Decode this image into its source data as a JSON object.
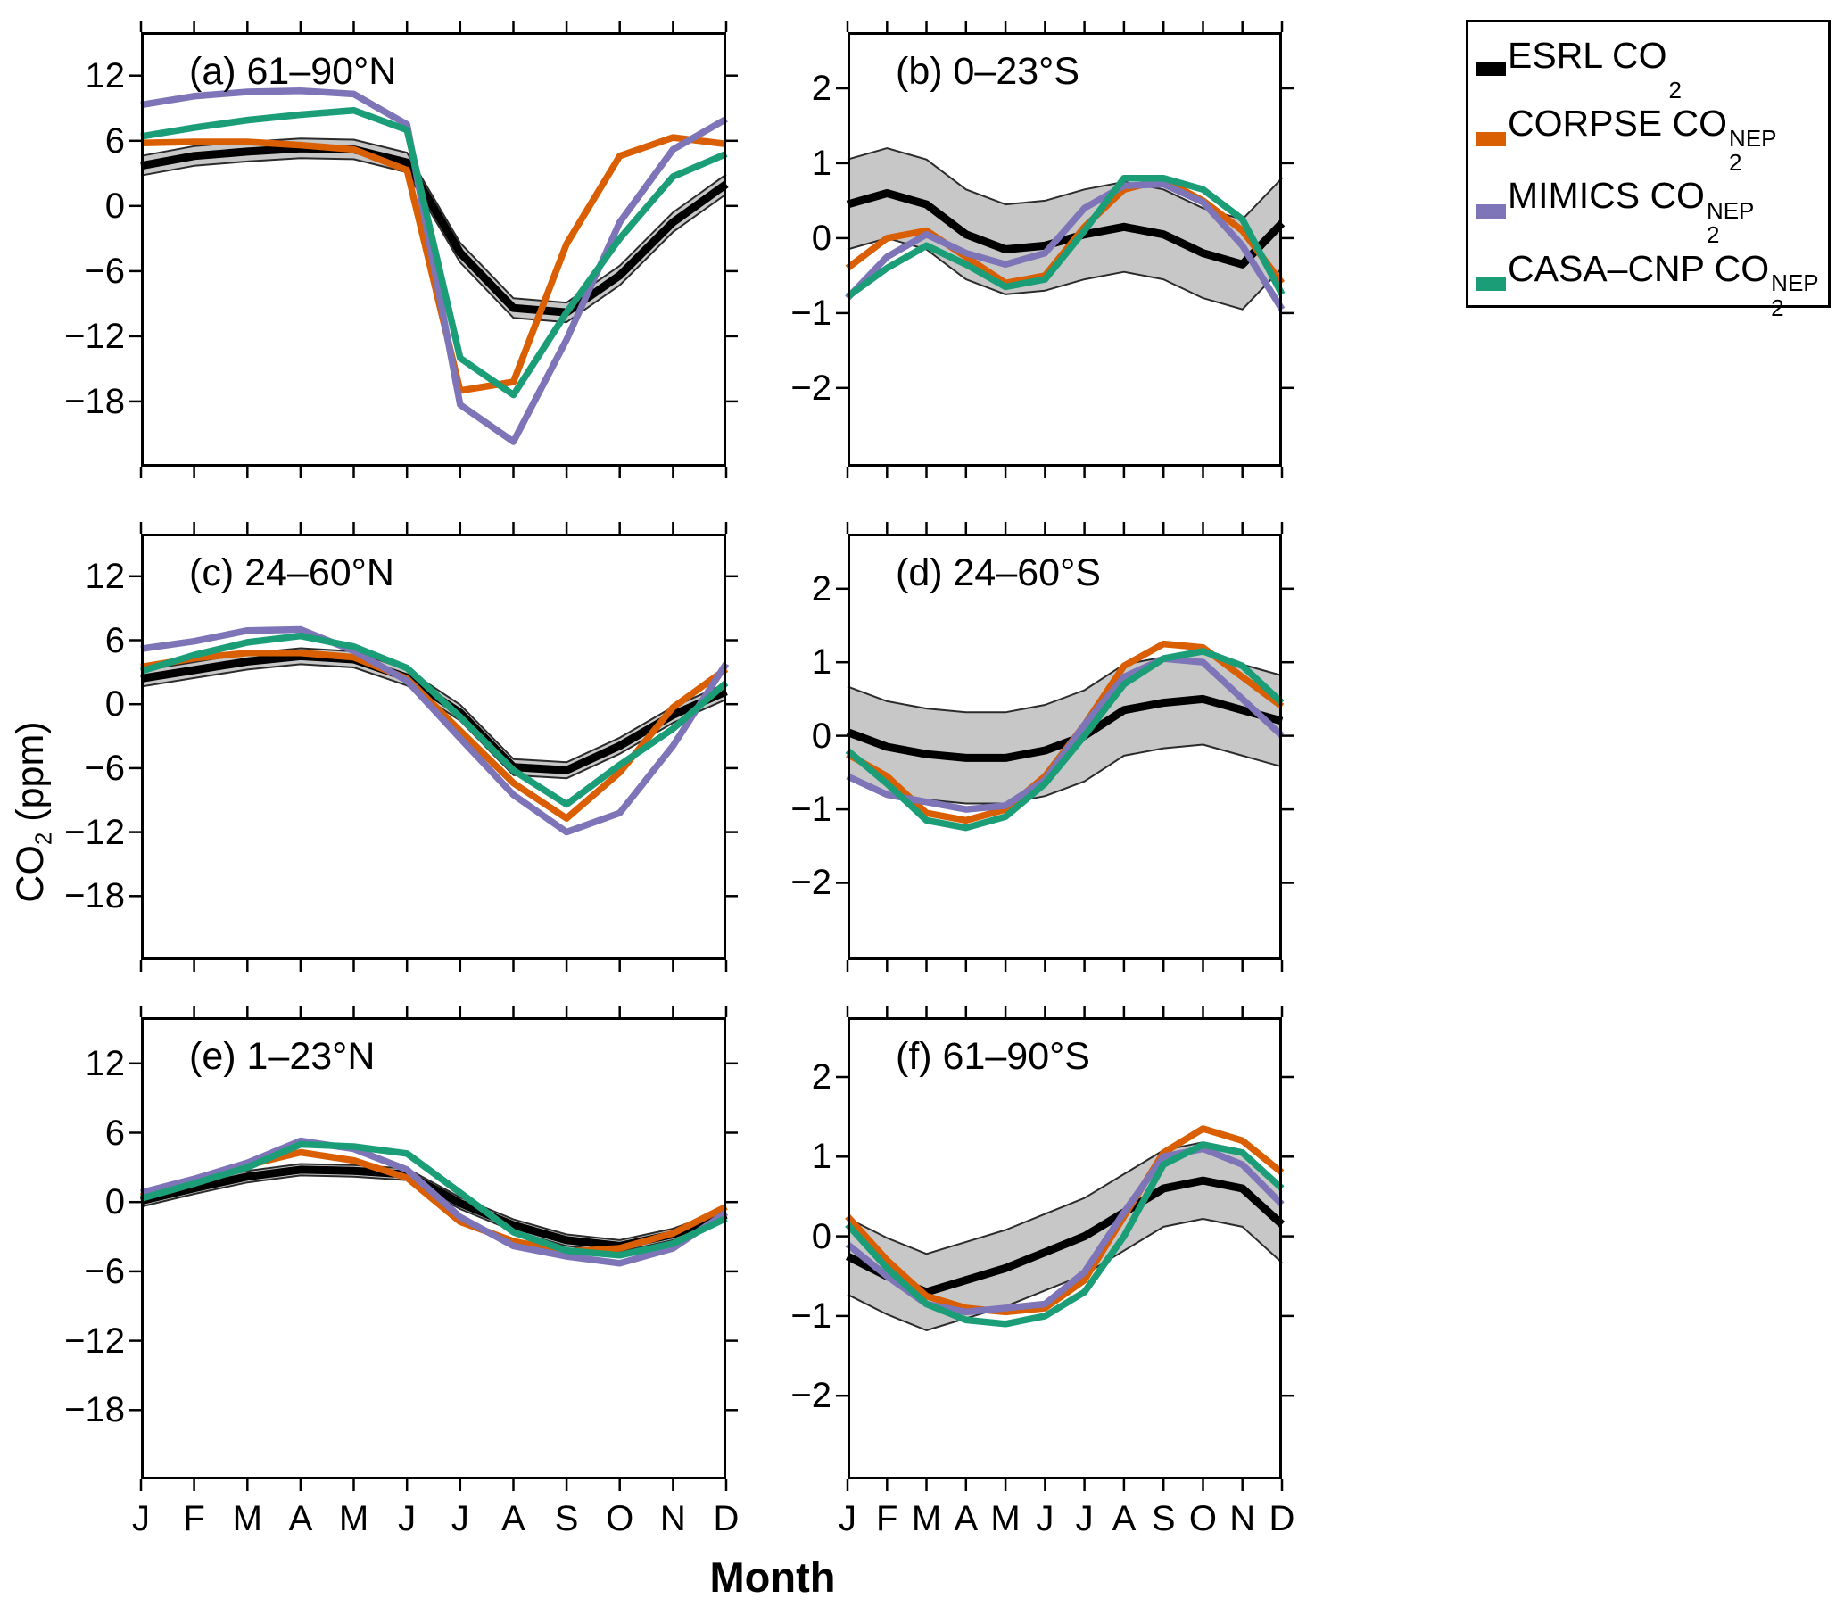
{
  "xlabel": "Month",
  "ylabel": {
    "pre": "CO",
    "sub": "2",
    "post": " (ppm)"
  },
  "legend": {
    "items": [
      {
        "key": "esrl",
        "prefix": "ESRL ",
        "base": "CO",
        "sub": "2",
        "sup": ""
      },
      {
        "key": "corpse",
        "prefix": "CORPSE ",
        "base": "CO",
        "sub": "2",
        "sup": "NEP"
      },
      {
        "key": "mimics",
        "prefix": "MIMICS ",
        "base": "CO",
        "sub": "2",
        "sup": "NEP"
      },
      {
        "key": "casa",
        "prefix": "CASA–CNP ",
        "base": "CO",
        "sub": "2",
        "sup": "NEP"
      }
    ]
  },
  "chart_data": {
    "type": "line",
    "categories": [
      "J",
      "F",
      "M",
      "A",
      "M",
      "J",
      "J",
      "A",
      "S",
      "O",
      "N",
      "D"
    ],
    "xlabel": "Month",
    "ylabel": "CO2 (ppm)",
    "grid": false,
    "legend_position": "top-right-outside",
    "colors": {
      "esrl": "#000000",
      "corpse": "#D95F02",
      "mimics": "#7E74B8",
      "casa": "#1B9E77",
      "band_fill": "#C7C7C7",
      "band_edge": "#2B2B2B"
    },
    "series_names": {
      "esrl": "ESRL CO2",
      "corpse": "CORPSE CO2 NEP",
      "mimics": "MIMICS CO2 NEP",
      "casa": "CASA-CNP CO2 NEP"
    },
    "panels": [
      {
        "id": "a",
        "title": "(a) 61–90°N",
        "row": 0,
        "col": "left",
        "ylim": [
          -24,
          16
        ],
        "ytick_values": [
          12,
          6,
          0,
          -6,
          -12,
          -18
        ],
        "ytick_labels": [
          "12",
          "6",
          "0",
          "−6",
          "−12",
          "−18"
        ],
        "series": {
          "band_halfwidth": 0.9,
          "esrl": [
            3.7,
            4.6,
            5.0,
            5.3,
            5.2,
            4.0,
            -4.3,
            -9.4,
            -9.8,
            -6.4,
            -1.5,
            2.0
          ],
          "corpse": [
            5.8,
            5.9,
            5.9,
            5.6,
            5.2,
            3.3,
            -17.0,
            -16.2,
            -3.5,
            4.6,
            6.3,
            5.7
          ],
          "mimics": [
            9.3,
            10.1,
            10.5,
            10.6,
            10.3,
            7.5,
            -18.3,
            -21.7,
            -12.3,
            -1.5,
            5.2,
            8.0
          ],
          "casa": [
            6.4,
            7.2,
            7.9,
            8.4,
            8.8,
            7.0,
            -14.0,
            -17.4,
            -9.8,
            -3.0,
            2.7,
            4.8
          ]
        }
      },
      {
        "id": "b",
        "title": "(b) 0–23°S",
        "row": 0,
        "col": "right",
        "ylim": [
          -3.05,
          2.75
        ],
        "ytick_values": [
          2,
          1,
          0,
          -1,
          -2
        ],
        "ytick_labels": [
          "2",
          "1",
          "0",
          "−1",
          "−2"
        ],
        "series": {
          "band_halfwidth": 0.6,
          "esrl": [
            0.45,
            0.6,
            0.45,
            0.05,
            -0.15,
            -0.1,
            0.05,
            0.15,
            0.05,
            -0.2,
            -0.35,
            0.2
          ],
          "corpse": [
            -0.4,
            0.0,
            0.1,
            -0.25,
            -0.6,
            -0.5,
            0.15,
            0.65,
            0.78,
            0.5,
            0.1,
            -0.6
          ],
          "mimics": [
            -0.8,
            -0.25,
            0.05,
            -0.2,
            -0.35,
            -0.2,
            0.4,
            0.7,
            0.72,
            0.48,
            -0.1,
            -0.95
          ],
          "casa": [
            -0.78,
            -0.4,
            -0.1,
            -0.35,
            -0.65,
            -0.55,
            0.1,
            0.8,
            0.8,
            0.65,
            0.25,
            -0.75
          ]
        }
      },
      {
        "id": "c",
        "title": "(c) 24–60°N",
        "row": 1,
        "col": "left",
        "ylim": [
          -24,
          16
        ],
        "ytick_values": [
          12,
          6,
          0,
          -6,
          -12,
          -18
        ],
        "ytick_labels": [
          "12",
          "6",
          "0",
          "−6",
          "−12",
          "−18"
        ],
        "series": {
          "band_halfwidth": 0.75,
          "esrl": [
            2.4,
            3.2,
            4.0,
            4.5,
            4.2,
            2.5,
            -0.8,
            -5.9,
            -6.2,
            -3.9,
            -1.0,
            1.2
          ],
          "corpse": [
            3.5,
            4.3,
            4.8,
            4.8,
            4.4,
            2.4,
            -2.5,
            -7.4,
            -10.7,
            -6.4,
            -0.3,
            3.3
          ],
          "mimics": [
            5.2,
            5.9,
            6.9,
            7.0,
            5.0,
            2.2,
            -3.2,
            -8.5,
            -12.0,
            -10.2,
            -3.9,
            3.8
          ],
          "casa": [
            3.1,
            4.6,
            5.8,
            6.4,
            5.4,
            3.4,
            -1.2,
            -6.2,
            -9.4,
            -5.7,
            -2.3,
            2.0
          ]
        }
      },
      {
        "id": "d",
        "title": "(d) 24–60°S",
        "row": 1,
        "col": "right",
        "ylim": [
          -3.05,
          2.75
        ],
        "ytick_values": [
          2,
          1,
          0,
          -1,
          -2
        ],
        "ytick_labels": [
          "2",
          "1",
          "0",
          "−1",
          "−2"
        ],
        "series": {
          "band_halfwidth": 0.62,
          "esrl": [
            0.05,
            -0.15,
            -0.25,
            -0.3,
            -0.3,
            -0.2,
            0.0,
            0.35,
            0.45,
            0.5,
            0.35,
            0.2
          ],
          "corpse": [
            -0.25,
            -0.55,
            -1.05,
            -1.15,
            -1.0,
            -0.55,
            0.15,
            0.95,
            1.25,
            1.2,
            0.8,
            0.4
          ],
          "mimics": [
            -0.55,
            -0.8,
            -0.9,
            -1.0,
            -0.95,
            -0.6,
            0.15,
            0.8,
            1.05,
            1.0,
            0.5,
            0.0
          ],
          "casa": [
            -0.2,
            -0.65,
            -1.15,
            -1.25,
            -1.1,
            -0.65,
            0.0,
            0.7,
            1.05,
            1.15,
            0.95,
            0.45
          ]
        }
      },
      {
        "id": "e",
        "title": "(e) 1–23°N",
        "row": 2,
        "col": "left",
        "ylim": [
          -24,
          16
        ],
        "ytick_values": [
          12,
          6,
          0,
          -6,
          -12,
          -18
        ],
        "ytick_labels": [
          "12",
          "6",
          "0",
          "−6",
          "−12",
          "−18"
        ],
        "series": {
          "band_halfwidth": 0.5,
          "esrl": [
            0.1,
            1.2,
            2.2,
            2.8,
            2.7,
            2.4,
            -0.1,
            -2.0,
            -3.3,
            -3.8,
            -2.8,
            -1.1
          ],
          "corpse": [
            0.5,
            1.8,
            3.2,
            4.3,
            3.6,
            2.1,
            -1.7,
            -3.4,
            -4.3,
            -4.0,
            -2.7,
            -0.4
          ],
          "mimics": [
            0.8,
            2.0,
            3.4,
            5.3,
            4.6,
            2.8,
            -1.3,
            -3.8,
            -4.7,
            -5.3,
            -4.0,
            -0.9
          ],
          "casa": [
            0.3,
            1.6,
            3.0,
            5.0,
            4.8,
            4.2,
            0.8,
            -2.6,
            -4.2,
            -4.6,
            -3.6,
            -1.4
          ]
        }
      },
      {
        "id": "f",
        "title": "(f) 61–90°S",
        "row": 2,
        "col": "right",
        "ylim": [
          -3.05,
          2.75
        ],
        "ytick_values": [
          2,
          1,
          0,
          -1,
          -2
        ],
        "ytick_labels": [
          "2",
          "1",
          "0",
          "−1",
          "−2"
        ],
        "series": {
          "band_halfwidth": 0.48,
          "esrl": [
            -0.25,
            -0.5,
            -0.7,
            -0.55,
            -0.4,
            -0.2,
            0.0,
            0.3,
            0.6,
            0.7,
            0.6,
            0.15
          ],
          "corpse": [
            0.25,
            -0.3,
            -0.75,
            -0.9,
            -0.95,
            -0.9,
            -0.55,
            0.25,
            1.05,
            1.35,
            1.2,
            0.8
          ],
          "mimics": [
            -0.1,
            -0.5,
            -0.85,
            -0.95,
            -0.9,
            -0.85,
            -0.45,
            0.3,
            1.0,
            1.1,
            0.9,
            0.4
          ],
          "casa": [
            0.15,
            -0.4,
            -0.85,
            -1.05,
            -1.1,
            -1.0,
            -0.7,
            0.0,
            0.9,
            1.15,
            1.05,
            0.6
          ]
        }
      }
    ]
  }
}
